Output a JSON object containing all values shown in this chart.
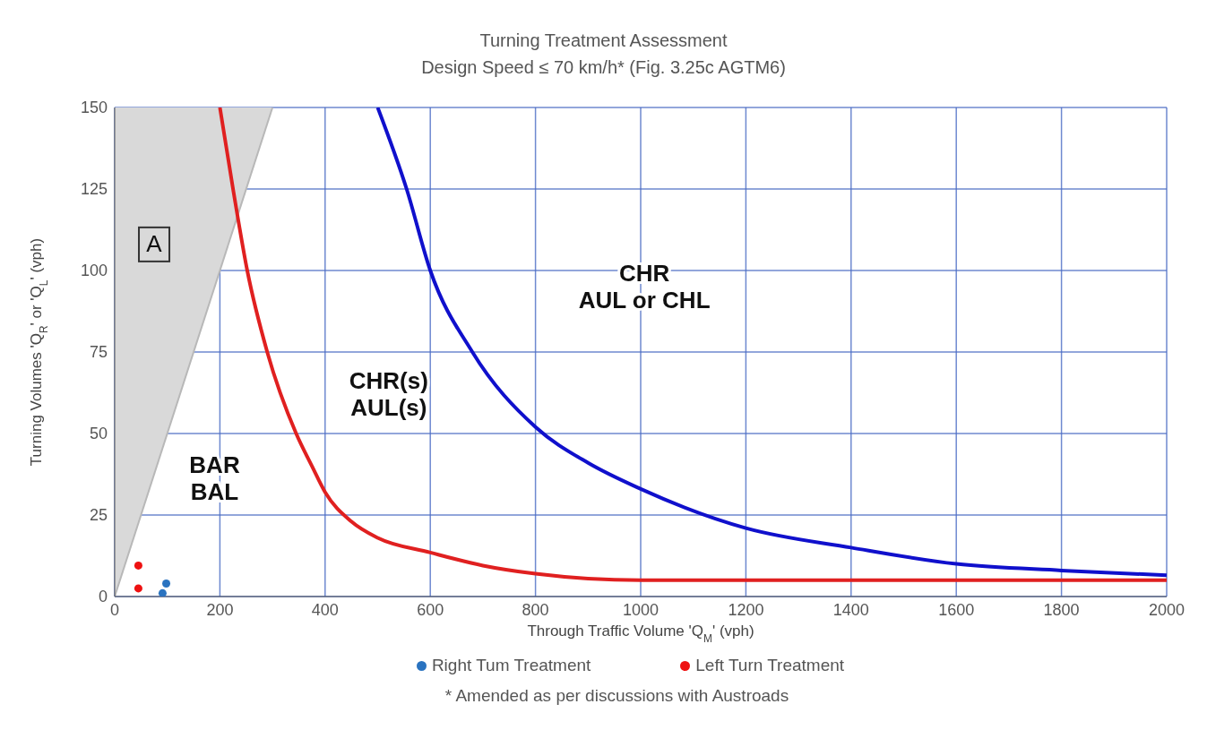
{
  "chart_data": {
    "type": "line",
    "title": "Turning Treatment Assessment",
    "subtitle": "Design Speed ≤ 70 km/h* (Fig. 3.25c AGTM6)",
    "xlabel": "Through Traffic Volume 'Q$_{M}$' (vph)",
    "ylabel": "Turning Volumes 'Q$_{R}$' or 'Q$_{L}$' (vph)",
    "xlim": [
      0,
      2000
    ],
    "xticks": [
      0,
      200,
      400,
      600,
      800,
      1000,
      1200,
      1400,
      1600,
      1800,
      2000
    ],
    "ylim": [
      0,
      150
    ],
    "yticks": [
      0,
      25,
      50,
      75,
      100,
      125,
      150
    ],
    "grid": true,
    "legend": "bottom",
    "series": [
      {
        "type": "area",
        "color": "#d9d9d9",
        "x": [
          0,
          300
        ],
        "values": [
          0,
          150
        ]
      },
      {
        "color": "#e02020",
        "x": [
          200,
          225,
          252,
          290,
          345,
          375,
          400,
          450,
          500,
          600,
          700,
          800,
          900,
          1000,
          1200,
          1400,
          1600,
          1800,
          2000
        ],
        "values": [
          150,
          125,
          100,
          75,
          50,
          40,
          32,
          23,
          18,
          13.5,
          9.5,
          7,
          5.5,
          5,
          5,
          5,
          5,
          5,
          5
        ]
      },
      {
        "color": "#1010cc",
        "x": [
          500,
          555,
          600,
          680,
          800,
          900,
          1000,
          1200,
          1400,
          1600,
          1800,
          2000
        ],
        "values": [
          150,
          125,
          100,
          75,
          52,
          41,
          33,
          21,
          15,
          10,
          8,
          6.5
        ]
      },
      {
        "type": "scatter",
        "name": "Right Tum Treatment",
        "color": "#2a73c0",
        "marker": "circle",
        "x": [
          91,
          98
        ],
        "values": [
          1,
          4
        ]
      },
      {
        "type": "scatter",
        "name": "Left Turn Treatment",
        "color": "#ee1111",
        "marker": "circle",
        "x": [
          45,
          45
        ],
        "values": [
          9.5,
          2.5
        ]
      }
    ],
    "annotations": [
      "A",
      "BAR\nBAL",
      "CHR(s)\nAUL(s)",
      "CHR\nAUL or CHL",
      "* Amended as per discussions with Austroads"
    ]
  }
}
